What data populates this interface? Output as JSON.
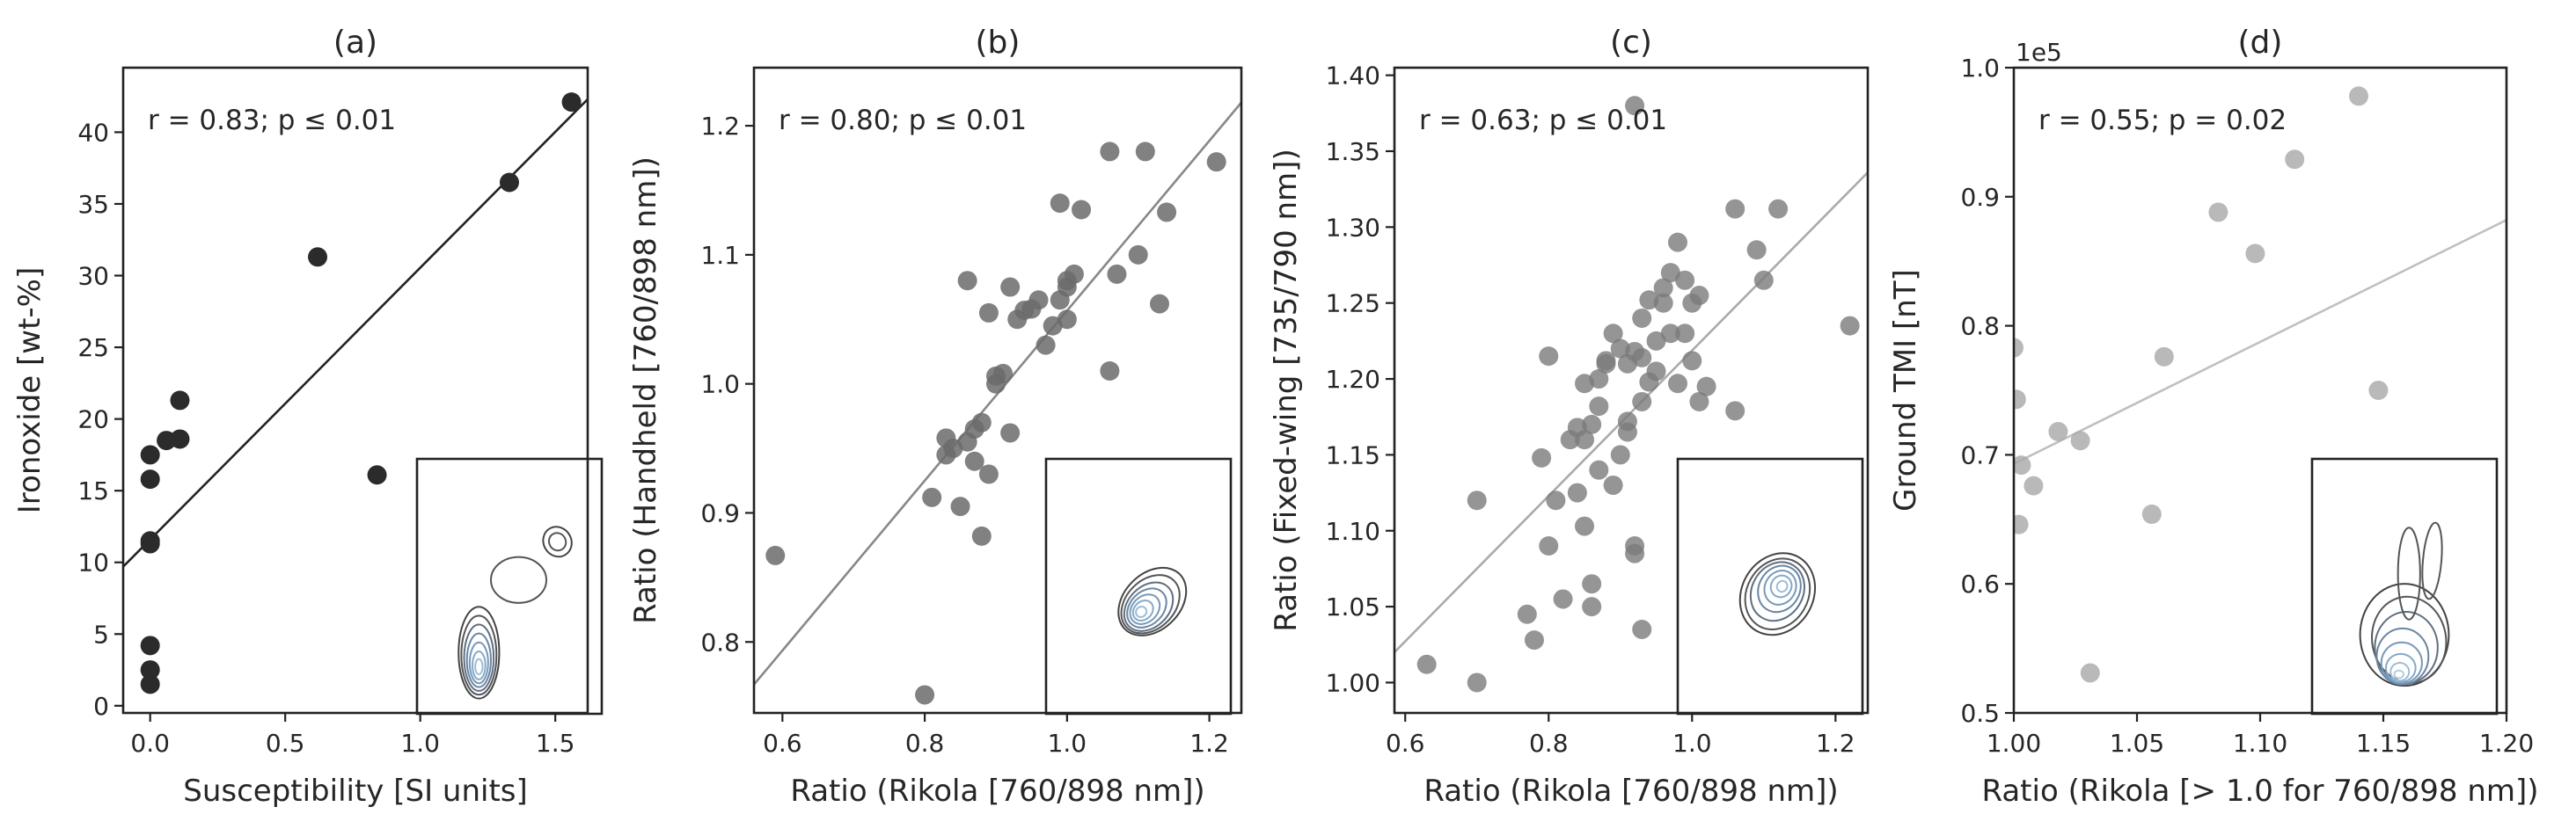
{
  "chart_data": [
    {
      "type": "scatter",
      "panel": "(a)",
      "title": "(a)",
      "xlabel": "Susceptibility [SI units]",
      "ylabel": "Ironoxide [wt-%]",
      "annotation": "r = 0.83; p ≤ 0.01",
      "xlim": [
        -0.1,
        1.62
      ],
      "ylim": [
        -0.5,
        44.5
      ],
      "xticks": [
        0.0,
        0.5,
        1.0,
        1.5
      ],
      "xtick_labels": [
        "0.0",
        "0.5",
        "1.0",
        "1.5"
      ],
      "yticks": [
        0,
        5,
        10,
        15,
        20,
        25,
        30,
        35,
        40
      ],
      "ytick_labels": [
        "0",
        "5",
        "10",
        "15",
        "20",
        "25",
        "30",
        "35",
        "40"
      ],
      "marker_color": "#2b2b2b",
      "marker_opacity": 1.0,
      "line_color": "#222222",
      "fit_line": {
        "x": [
          -0.1,
          1.62
        ],
        "y": [
          9.7,
          42.3
        ]
      },
      "points": {
        "x": [
          0.0,
          0.0,
          0.0,
          0.0,
          0.0,
          0.0,
          0.0,
          0.06,
          0.11,
          0.11,
          0.62,
          0.84,
          1.33,
          1.56
        ],
        "y": [
          1.5,
          2.5,
          4.2,
          11.3,
          11.5,
          15.8,
          17.5,
          18.5,
          18.6,
          21.3,
          31.3,
          16.1,
          36.5,
          42.1
        ]
      },
      "inset": "kde-contour"
    },
    {
      "type": "scatter",
      "panel": "(b)",
      "title": "(b)",
      "xlabel": "Ratio (Rikola [760/898 nm])",
      "ylabel": "Ratio (Handheld [760/898 nm])",
      "annotation": "r = 0.80; p ≤ 0.01",
      "xlim": [
        0.56,
        1.245
      ],
      "ylim": [
        0.745,
        1.245
      ],
      "xticks": [
        0.6,
        0.8,
        1.0,
        1.2
      ],
      "xtick_labels": [
        "0.6",
        "0.8",
        "1.0",
        "1.2"
      ],
      "yticks": [
        0.8,
        0.9,
        1.0,
        1.1,
        1.2
      ],
      "ytick_labels": [
        "0.8",
        "0.9",
        "1.0",
        "1.1",
        "1.2"
      ],
      "marker_color": "#6b6b6b",
      "marker_opacity": 0.85,
      "line_color": "#888888",
      "fit_line": {
        "x": [
          0.56,
          1.245
        ],
        "y": [
          0.767,
          1.218
        ]
      },
      "points": {
        "x": [
          0.59,
          0.8,
          0.81,
          0.83,
          0.83,
          0.84,
          0.85,
          0.86,
          0.86,
          0.87,
          0.87,
          0.88,
          0.88,
          0.89,
          0.89,
          0.9,
          0.9,
          0.91,
          0.92,
          0.92,
          0.93,
          0.94,
          0.95,
          0.96,
          0.97,
          0.98,
          0.99,
          0.99,
          1.0,
          1.0,
          1.0,
          1.01,
          1.02,
          1.06,
          1.06,
          1.07,
          1.1,
          1.11,
          1.13,
          1.14,
          1.21
        ],
        "y": [
          0.867,
          0.759,
          0.912,
          0.945,
          0.958,
          0.95,
          0.905,
          1.08,
          0.955,
          0.965,
          0.94,
          0.97,
          0.882,
          1.055,
          0.93,
          1.0,
          1.006,
          1.008,
          1.075,
          0.962,
          1.05,
          1.057,
          1.058,
          1.065,
          1.03,
          1.045,
          1.14,
          1.065,
          1.075,
          1.08,
          1.05,
          1.085,
          1.135,
          1.18,
          1.01,
          1.085,
          1.1,
          1.18,
          1.062,
          1.133,
          1.172
        ]
      },
      "inset": "kde-contour"
    },
    {
      "type": "scatter",
      "panel": "(c)",
      "title": "(c)",
      "xlabel": "Ratio (Rikola [760/898 nm])",
      "ylabel": "Ratio (Fixed-wing [735/790 nm])",
      "annotation": "r = 0.63; p ≤ 0.01",
      "xlim": [
        0.585,
        1.245
      ],
      "ylim": [
        0.98,
        1.405
      ],
      "xticks": [
        0.6,
        0.8,
        1.0,
        1.2
      ],
      "xtick_labels": [
        "0.6",
        "0.8",
        "1.0",
        "1.2"
      ],
      "yticks": [
        1.0,
        1.05,
        1.1,
        1.15,
        1.2,
        1.25,
        1.3,
        1.35,
        1.4
      ],
      "ytick_labels": [
        "1.00",
        "1.05",
        "1.10",
        "1.15",
        "1.20",
        "1.25",
        "1.30",
        "1.35",
        "1.40"
      ],
      "marker_color": "#7a7a7a",
      "marker_opacity": 0.8,
      "line_color": "#aaaaaa",
      "fit_line": {
        "x": [
          0.585,
          1.245
        ],
        "y": [
          1.02,
          1.336
        ]
      },
      "points": {
        "x": [
          0.63,
          0.7,
          0.7,
          0.77,
          0.78,
          0.79,
          0.8,
          0.8,
          0.81,
          0.82,
          0.83,
          0.84,
          0.84,
          0.85,
          0.85,
          0.85,
          0.86,
          0.86,
          0.86,
          0.87,
          0.87,
          0.87,
          0.88,
          0.88,
          0.89,
          0.89,
          0.9,
          0.9,
          0.91,
          0.91,
          0.91,
          0.92,
          0.92,
          0.92,
          0.93,
          0.93,
          0.93,
          0.93,
          0.94,
          0.94,
          0.95,
          0.95,
          0.96,
          0.96,
          0.97,
          0.97,
          0.98,
          0.98,
          0.99,
          0.99,
          1.0,
          1.0,
          1.01,
          1.01,
          1.02,
          1.06,
          1.06,
          1.09,
          1.1,
          1.12,
          1.22,
          0.92
        ],
        "y": [
          1.012,
          1.0,
          1.12,
          1.045,
          1.028,
          1.148,
          1.215,
          1.09,
          1.12,
          1.055,
          1.16,
          1.168,
          1.125,
          1.16,
          1.197,
          1.103,
          1.17,
          1.065,
          1.05,
          1.2,
          1.14,
          1.182,
          1.212,
          1.21,
          1.13,
          1.23,
          1.15,
          1.22,
          1.21,
          1.172,
          1.165,
          1.218,
          1.09,
          1.085,
          1.214,
          1.24,
          1.035,
          1.185,
          1.198,
          1.252,
          1.225,
          1.205,
          1.26,
          1.25,
          1.27,
          1.23,
          1.29,
          1.197,
          1.265,
          1.23,
          1.25,
          1.212,
          1.255,
          1.185,
          1.195,
          1.179,
          1.312,
          1.285,
          1.265,
          1.312,
          1.235,
          1.38
        ]
      },
      "inset": "kde-contour"
    },
    {
      "type": "scatter",
      "panel": "(d)",
      "title": "(d)",
      "xlabel": "Ratio (Rikola [> 1.0 for 760/898 nm])",
      "ylabel": "Ground TMI [nT]",
      "annotation": "r = 0.55; p = 0.02",
      "offset_label": "1e5",
      "xlim": [
        1.0,
        1.2
      ],
      "ylim": [
        0.5,
        1.0
      ],
      "xticks": [
        1.0,
        1.05,
        1.1,
        1.15,
        1.2
      ],
      "xtick_labels": [
        "1.00",
        "1.05",
        "1.10",
        "1.15",
        "1.20"
      ],
      "yticks": [
        0.5,
        0.6,
        0.7,
        0.8,
        0.9,
        1.0
      ],
      "ytick_labels": [
        "0.5",
        "0.6",
        "0.7",
        "0.8",
        "0.9",
        "1.0"
      ],
      "marker_color": "#a8a8a8",
      "marker_opacity": 0.8,
      "line_color": "#c0c0c0",
      "fit_line": {
        "x": [
          1.0,
          1.2
        ],
        "y": [
          0.693,
          0.882
        ]
      },
      "points": {
        "x": [
          1.0,
          1.001,
          1.002,
          1.003,
          1.008,
          1.018,
          1.027,
          1.031,
          1.056,
          1.061,
          1.083,
          1.098,
          1.114,
          1.14,
          1.148
        ],
        "y": [
          0.783,
          0.743,
          0.646,
          0.692,
          0.676,
          0.718,
          0.711,
          0.531,
          0.654,
          0.776,
          0.888,
          0.856,
          0.929,
          0.978,
          0.75
        ]
      },
      "inset": "kde-contour"
    }
  ]
}
